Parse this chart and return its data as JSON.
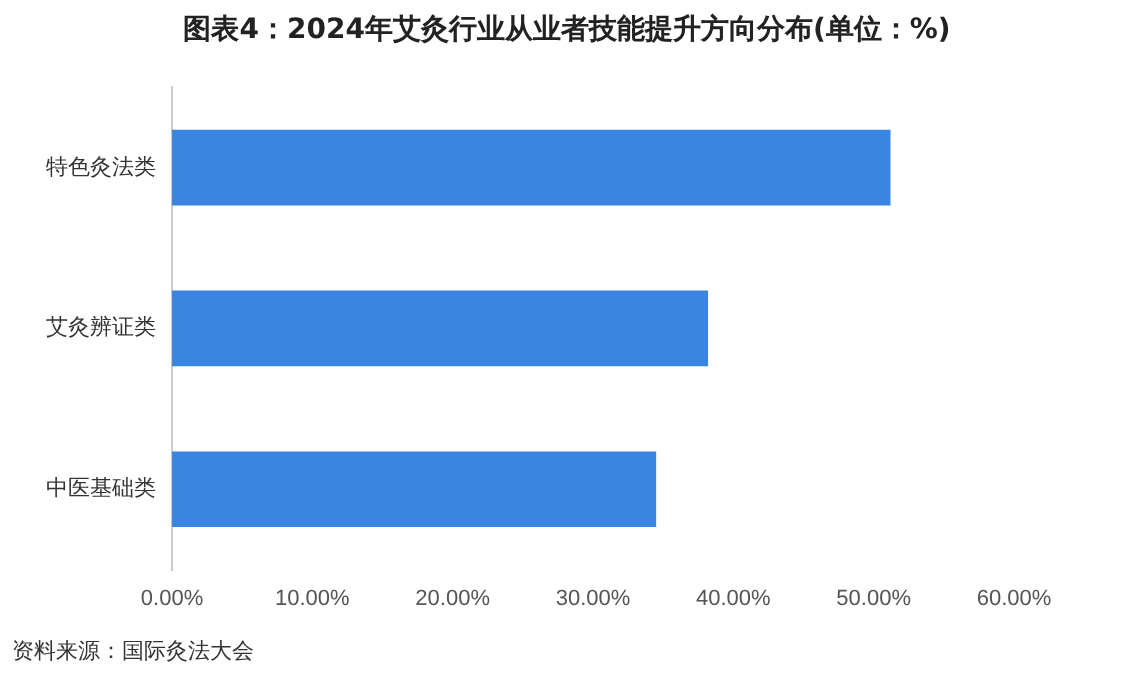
{
  "chart_data": {
    "type": "bar",
    "orientation": "horizontal",
    "title": "图表4：2024年艾灸行业从业者技能提升方向分布(单位：%)",
    "categories": [
      "特色灸法类",
      "艾灸辨证类",
      "中医基础类"
    ],
    "values": [
      51.2,
      38.2,
      34.5
    ],
    "color": "#3a84e2",
    "xlim": [
      0,
      60
    ],
    "xticks": [
      {
        "value": 0,
        "label": "0.00%"
      },
      {
        "value": 10,
        "label": "10.00%"
      },
      {
        "value": 20,
        "label": "20.00%"
      },
      {
        "value": 30,
        "label": "30.00%"
      },
      {
        "value": 40,
        "label": "40.00%"
      },
      {
        "value": 50,
        "label": "50.00%"
      },
      {
        "value": 60,
        "label": "60.00%"
      }
    ],
    "grid": false,
    "legend": false,
    "annotations": [
      "资料来源：国际灸法大会"
    ]
  }
}
